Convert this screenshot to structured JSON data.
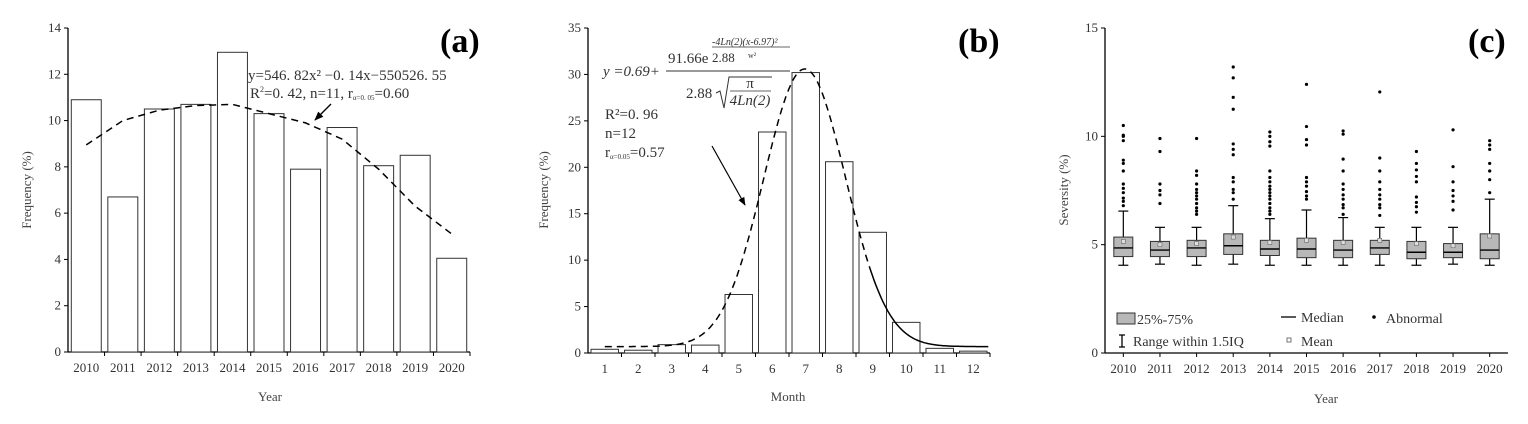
{
  "chart_data": [
    {
      "type": "bar",
      "panel_label": "(a)",
      "categories": [
        "2010",
        "2011",
        "2012",
        "2013",
        "2014",
        "2015",
        "2016",
        "2017",
        "2018",
        "2019",
        "2020"
      ],
      "values": [
        10.9,
        6.7,
        10.5,
        10.7,
        12.95,
        10.3,
        7.9,
        9.7,
        8.05,
        8.5,
        4.05
      ],
      "fit_values": [
        8.95,
        10.0,
        10.45,
        10.65,
        10.7,
        10.3,
        9.9,
        9.2,
        7.9,
        6.3,
        5.1
      ],
      "xlabel": "Year",
      "ylabel": "Frequency (%)",
      "ylim": [
        0,
        14
      ],
      "yticks": [
        "0",
        "2",
        "4",
        "6",
        "8",
        "10",
        "12",
        "14"
      ],
      "annotation": {
        "equation": "y=546. 82x² −0. 14x−550526. 55",
        "stats_prefix": "R",
        "stats_sup": "2",
        "stats_mid": "=0. 42, n=11, r",
        "stats_sub": "α=0. 05",
        "stats_end": "=0.60"
      }
    },
    {
      "type": "bar",
      "panel_label": "(b)",
      "categories": [
        "1",
        "2",
        "3",
        "4",
        "5",
        "6",
        "7",
        "8",
        "9",
        "10",
        "11",
        "12"
      ],
      "values": [
        0.4,
        0.3,
        0.9,
        0.85,
        6.3,
        23.8,
        30.2,
        20.6,
        13.0,
        3.3,
        0.5,
        0.2
      ],
      "fit": {
        "y0": 0.69,
        "A": 91.66,
        "w": 2.88,
        "xc": 6.97
      },
      "xlabel": "Month",
      "ylabel": "Frequency (%)",
      "ylim": [
        0,
        35
      ],
      "yticks": [
        "0",
        "5",
        "10",
        "15",
        "20",
        "25",
        "30",
        "35"
      ],
      "annotation": {
        "lhs": "y =0.69+",
        "num": "91.66e",
        "exp_top": "-4Ln(2)(x-6.97)²",
        "exp_bottom_a": "2.88",
        "exp_bottom_b": "w²",
        "den": "2.88",
        "sqrt_top": "π",
        "sqrt_bottom": "4Ln(2)",
        "r2": "R²=0. 96",
        "n": "n=12",
        "r_prefix": "r",
        "r_sub": "α=0.05",
        "r_end": "=0.57"
      }
    },
    {
      "type": "box",
      "panel_label": "(c)",
      "categories": [
        "2010",
        "2011",
        "2012",
        "2013",
        "2014",
        "2015",
        "2016",
        "2017",
        "2018",
        "2019",
        "2020"
      ],
      "boxes": [
        {
          "q1": 4.45,
          "median": 4.85,
          "q3": 5.35,
          "mean": 5.15,
          "low": 4.05,
          "high": 6.55,
          "outliers": [
            10.5,
            10.05,
            10.0,
            9.8,
            8.9,
            8.75,
            8.4,
            7.8,
            7.6,
            7.4,
            7.15,
            7.0,
            6.8
          ]
        },
        {
          "q1": 4.45,
          "median": 4.75,
          "q3": 5.15,
          "mean": 5.0,
          "low": 4.1,
          "high": 5.8,
          "outliers": [
            9.9,
            9.3,
            7.8,
            7.5,
            7.3,
            6.9
          ]
        },
        {
          "q1": 4.45,
          "median": 4.85,
          "q3": 5.2,
          "mean": 5.05,
          "low": 4.05,
          "high": 5.8,
          "outliers": [
            9.9,
            8.4,
            8.2,
            7.8,
            7.55,
            7.4,
            7.25,
            7.1,
            6.9,
            6.7,
            6.55,
            6.4
          ]
        },
        {
          "q1": 4.55,
          "median": 4.95,
          "q3": 5.5,
          "mean": 5.35,
          "low": 4.1,
          "high": 6.8,
          "outliers": [
            13.2,
            12.7,
            11.8,
            11.25,
            9.65,
            9.4,
            9.15,
            8.1,
            7.9,
            7.55,
            7.4,
            7.1
          ]
        },
        {
          "q1": 4.5,
          "median": 4.8,
          "q3": 5.2,
          "mean": 5.1,
          "low": 4.05,
          "high": 6.2,
          "outliers": [
            10.2,
            10.0,
            9.75,
            9.55,
            8.4,
            8.1,
            7.9,
            7.7,
            7.55,
            7.4,
            7.25,
            7.1,
            6.9,
            6.7,
            6.55,
            6.4
          ]
        },
        {
          "q1": 4.4,
          "median": 4.8,
          "q3": 5.3,
          "mean": 5.2,
          "low": 4.05,
          "high": 6.6,
          "outliers": [
            12.4,
            10.45,
            9.85,
            9.6,
            8.1,
            7.9,
            7.7,
            7.45,
            7.25,
            7.1
          ]
        },
        {
          "q1": 4.4,
          "median": 4.75,
          "q3": 5.2,
          "mean": 5.1,
          "low": 4.05,
          "high": 6.25,
          "outliers": [
            10.25,
            10.1,
            8.95,
            8.4,
            7.8,
            7.55,
            7.3,
            7.1,
            6.85,
            6.7,
            6.4
          ]
        },
        {
          "q1": 4.55,
          "median": 4.85,
          "q3": 5.2,
          "mean": 5.2,
          "low": 4.05,
          "high": 5.8,
          "outliers": [
            12.05,
            9.0,
            8.4,
            7.9,
            7.55,
            7.3,
            7.1,
            6.85,
            6.7,
            6.35
          ]
        },
        {
          "q1": 4.35,
          "median": 4.65,
          "q3": 5.15,
          "mean": 5.05,
          "low": 4.05,
          "high": 5.8,
          "outliers": [
            9.3,
            8.75,
            8.45,
            8.15,
            7.9,
            7.2,
            6.95,
            6.75,
            6.5
          ]
        },
        {
          "q1": 4.4,
          "median": 4.65,
          "q3": 5.05,
          "mean": 4.95,
          "low": 4.1,
          "high": 5.8,
          "outliers": [
            10.3,
            8.6,
            7.9,
            7.5,
            7.25,
            7.0,
            6.6
          ]
        },
        {
          "q1": 4.35,
          "median": 4.75,
          "q3": 5.5,
          "mean": 5.4,
          "low": 4.05,
          "high": 7.1,
          "outliers": [
            9.8,
            9.6,
            9.4,
            8.75,
            8.4,
            8.0,
            7.4
          ]
        }
      ],
      "xlabel": "Year",
      "ylabel": "Seversity (%)",
      "ylim": [
        0,
        15
      ],
      "yticks": [
        "0",
        "5",
        "10",
        "15"
      ],
      "legend": {
        "box": "25%-75%",
        "median": "Median",
        "abnormal": "Abnormal",
        "range": "Range within 1.5IQ",
        "mean": "Mean"
      },
      "box_color": "#b8b8b8"
    }
  ]
}
